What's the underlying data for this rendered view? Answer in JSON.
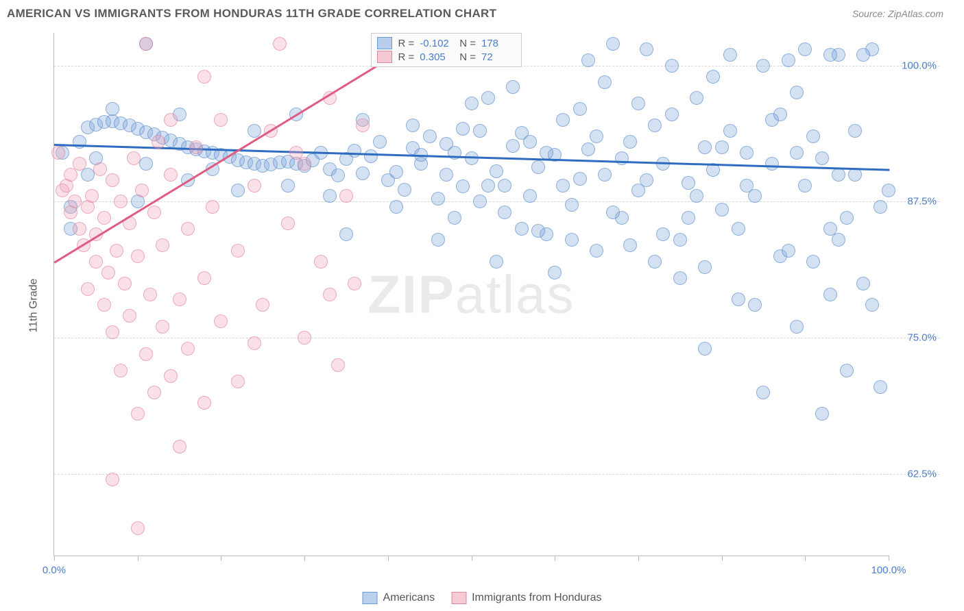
{
  "title": "AMERICAN VS IMMIGRANTS FROM HONDURAS 11TH GRADE CORRELATION CHART",
  "source": "Source: ZipAtlas.com",
  "ylabel": "11th Grade",
  "watermark_bold": "ZIP",
  "watermark_rest": "atlas",
  "chart": {
    "type": "scatter",
    "background_color": "#ffffff",
    "grid_color": "#d8d8d8",
    "xlim": [
      0,
      100
    ],
    "ylim": [
      55,
      103
    ],
    "xticks": [
      0,
      10,
      20,
      30,
      40,
      50,
      60,
      70,
      80,
      90,
      100
    ],
    "xtick_labels": {
      "0": "0.0%",
      "100": "100.0%"
    },
    "yticks": [
      62.5,
      75.0,
      87.5,
      100.0
    ],
    "ytick_labels": [
      "62.5%",
      "75.0%",
      "87.5%",
      "100.0%"
    ],
    "marker_radius": 10,
    "series": [
      {
        "name": "Americans",
        "color": "#8aabd9",
        "border": "#6a9ad4",
        "R": "-0.102",
        "N": "178",
        "trend": {
          "x1": 0,
          "y1": 92.8,
          "x2": 100,
          "y2": 90.5,
          "color": "#2e6cc2"
        },
        "points": [
          [
            1,
            92
          ],
          [
            2,
            85
          ],
          [
            3,
            93
          ],
          [
            4,
            94.3
          ],
          [
            5,
            94.6
          ],
          [
            6,
            94.8
          ],
          [
            7,
            94.9
          ],
          [
            8,
            94.7
          ],
          [
            9,
            94.5
          ],
          [
            10,
            94.2
          ],
          [
            11,
            93.9
          ],
          [
            12,
            93.7
          ],
          [
            13,
            93.4
          ],
          [
            14,
            93.1
          ],
          [
            15,
            92.8
          ],
          [
            16,
            92.5
          ],
          [
            17,
            92.3
          ],
          [
            18,
            92.1
          ],
          [
            19,
            92.0
          ],
          [
            20,
            91.8
          ],
          [
            21,
            91.6
          ],
          [
            22,
            91.3
          ],
          [
            23,
            91.1
          ],
          [
            24,
            91.0
          ],
          [
            25,
            90.8
          ],
          [
            26,
            90.9
          ],
          [
            27,
            91.1
          ],
          [
            28,
            91.2
          ],
          [
            29,
            91.0
          ],
          [
            30,
            90.8
          ],
          [
            31,
            91.3
          ],
          [
            32,
            92.0
          ],
          [
            33,
            90.5
          ],
          [
            34,
            89.9
          ],
          [
            35,
            91.4
          ],
          [
            36,
            92.2
          ],
          [
            37,
            90.1
          ],
          [
            38,
            91.7
          ],
          [
            39,
            93.0
          ],
          [
            40,
            89.5
          ],
          [
            41,
            90.2
          ],
          [
            42,
            88.6
          ],
          [
            43,
            92.4
          ],
          [
            44,
            91.0
          ],
          [
            45,
            93.5
          ],
          [
            46,
            87.8
          ],
          [
            47,
            90.0
          ],
          [
            48,
            92.0
          ],
          [
            49,
            88.9
          ],
          [
            50,
            91.5
          ],
          [
            51,
            94.0
          ],
          [
            52,
            89.0
          ],
          [
            53,
            90.3
          ],
          [
            54,
            86.5
          ],
          [
            55,
            92.6
          ],
          [
            56,
            93.8
          ],
          [
            57,
            88.0
          ],
          [
            58,
            90.7
          ],
          [
            59,
            84.5
          ],
          [
            60,
            91.8
          ],
          [
            61,
            95.0
          ],
          [
            62,
            87.2
          ],
          [
            63,
            89.6
          ],
          [
            64,
            92.3
          ],
          [
            65,
            83.0
          ],
          [
            66,
            90.0
          ],
          [
            67,
            102.0
          ],
          [
            68,
            86.0
          ],
          [
            69,
            93.0
          ],
          [
            70,
            88.5
          ],
          [
            71,
            101.5
          ],
          [
            72,
            82.0
          ],
          [
            73,
            91.0
          ],
          [
            74,
            95.5
          ],
          [
            75,
            84.0
          ],
          [
            76,
            89.2
          ],
          [
            77,
            97.0
          ],
          [
            78,
            81.5
          ],
          [
            79,
            90.4
          ],
          [
            80,
            86.8
          ],
          [
            81,
            101.0
          ],
          [
            82,
            78.5
          ],
          [
            83,
            92.0
          ],
          [
            84,
            88.0
          ],
          [
            85,
            70.0
          ],
          [
            86,
            95.0
          ],
          [
            87,
            82.5
          ],
          [
            88,
            100.5
          ],
          [
            89,
            76.0
          ],
          [
            90,
            89.0
          ],
          [
            91,
            93.5
          ],
          [
            92,
            68.0
          ],
          [
            93,
            85.0
          ],
          [
            94,
            101.0
          ],
          [
            95,
            72.0
          ],
          [
            96,
            90.0
          ],
          [
            97,
            80.0
          ],
          [
            98,
            101.5
          ],
          [
            99,
            87.0
          ],
          [
            100,
            88.5
          ],
          [
            43,
            94.5
          ],
          [
            48,
            86.0
          ],
          [
            52,
            97.0
          ],
          [
            57,
            93.0
          ],
          [
            62,
            84.0
          ],
          [
            66,
            98.5
          ],
          [
            71,
            89.5
          ],
          [
            74,
            100.0
          ],
          [
            78,
            92.5
          ],
          [
            82,
            85.0
          ],
          [
            86,
            91.0
          ],
          [
            89,
            97.5
          ],
          [
            93,
            79.0
          ],
          [
            96,
            94.0
          ],
          [
            44,
            91.8
          ],
          [
            49,
            94.2
          ],
          [
            54,
            89.0
          ],
          [
            58,
            84.8
          ],
          [
            63,
            96.0
          ],
          [
            68,
            91.5
          ],
          [
            73,
            84.5
          ],
          [
            77,
            88.0
          ],
          [
            81,
            94.0
          ],
          [
            85,
            100.0
          ],
          [
            88,
            83.0
          ],
          [
            92,
            91.5
          ],
          [
            95,
            86.0
          ],
          [
            98,
            78.0
          ],
          [
            47,
            92.8
          ],
          [
            53,
            82.0
          ],
          [
            33,
            88.0
          ],
          [
            37,
            95.0
          ],
          [
            28,
            89.0
          ],
          [
            24,
            94.0
          ],
          [
            19,
            90.5
          ],
          [
            15,
            95.5
          ],
          [
            11,
            91.0
          ],
          [
            7,
            96.0
          ],
          [
            4,
            90.0
          ],
          [
            2,
            87.0
          ],
          [
            55,
            98.0
          ],
          [
            60,
            81.0
          ],
          [
            65,
            93.5
          ],
          [
            70,
            96.5
          ],
          [
            75,
            80.5
          ],
          [
            80,
            92.5
          ],
          [
            84,
            78.0
          ],
          [
            87,
            95.5
          ],
          [
            91,
            82.0
          ],
          [
            94,
            90.0
          ],
          [
            97,
            101.0
          ],
          [
            99,
            70.5
          ],
          [
            46,
            84.0
          ],
          [
            51,
            87.5
          ],
          [
            56,
            85.0
          ],
          [
            61,
            89.0
          ],
          [
            64,
            100.5
          ],
          [
            69,
            83.5
          ],
          [
            72,
            94.5
          ],
          [
            76,
            86.0
          ],
          [
            79,
            99.0
          ],
          [
            83,
            89.0
          ],
          [
            78,
            74.0
          ],
          [
            67,
            86.5
          ],
          [
            59,
            92.0
          ],
          [
            50,
            96.5
          ],
          [
            41,
            87.0
          ],
          [
            35,
            84.5
          ],
          [
            29,
            95.5
          ],
          [
            22,
            88.5
          ],
          [
            16,
            89.5
          ],
          [
            10,
            87.5
          ],
          [
            5,
            91.5
          ],
          [
            89,
            92.0
          ],
          [
            94,
            84.0
          ],
          [
            11,
            102.0
          ],
          [
            90,
            101.5
          ],
          [
            93,
            101.0
          ]
        ]
      },
      {
        "name": "Immigrants from Honduras",
        "color": "#f0a8ba",
        "border": "#d88aa2",
        "R": "0.305",
        "N": "72",
        "trend": {
          "x1": 0,
          "y1": 82.0,
          "x2": 45,
          "y2": 103.0,
          "color": "#e05b84"
        },
        "points": [
          [
            0.5,
            92.0
          ],
          [
            1,
            88.5
          ],
          [
            1.5,
            89.0
          ],
          [
            2,
            86.5
          ],
          [
            2,
            90.0
          ],
          [
            2.5,
            87.5
          ],
          [
            3,
            85.0
          ],
          [
            3,
            91.0
          ],
          [
            3.5,
            83.5
          ],
          [
            4,
            87.0
          ],
          [
            4,
            79.5
          ],
          [
            4.5,
            88.0
          ],
          [
            5,
            84.5
          ],
          [
            5,
            82.0
          ],
          [
            5.5,
            90.5
          ],
          [
            6,
            78.0
          ],
          [
            6,
            86.0
          ],
          [
            6.5,
            81.0
          ],
          [
            7,
            89.5
          ],
          [
            7,
            75.5
          ],
          [
            7.5,
            83.0
          ],
          [
            8,
            87.5
          ],
          [
            8,
            72.0
          ],
          [
            8.5,
            80.0
          ],
          [
            9,
            85.5
          ],
          [
            9,
            77.0
          ],
          [
            9.5,
            91.5
          ],
          [
            10,
            68.0
          ],
          [
            10,
            82.5
          ],
          [
            10,
            57.5
          ],
          [
            10.5,
            88.5
          ],
          [
            11,
            73.5
          ],
          [
            11,
            102.0
          ],
          [
            11.5,
            79.0
          ],
          [
            12,
            86.5
          ],
          [
            12,
            70.0
          ],
          [
            12.5,
            93.0
          ],
          [
            13,
            76.0
          ],
          [
            13,
            83.5
          ],
          [
            14,
            71.5
          ],
          [
            14,
            90.0
          ],
          [
            15,
            78.5
          ],
          [
            15,
            65.0
          ],
          [
            16,
            85.0
          ],
          [
            16,
            74.0
          ],
          [
            17,
            92.5
          ],
          [
            18,
            80.5
          ],
          [
            18,
            69.0
          ],
          [
            19,
            87.0
          ],
          [
            20,
            76.5
          ],
          [
            20,
            95.0
          ],
          [
            22,
            83.0
          ],
          [
            22,
            71.0
          ],
          [
            24,
            89.0
          ],
          [
            25,
            78.0
          ],
          [
            26,
            94.0
          ],
          [
            27,
            102.0
          ],
          [
            28,
            85.5
          ],
          [
            30,
            75.0
          ],
          [
            30,
            91.0
          ],
          [
            32,
            82.0
          ],
          [
            33,
            97.0
          ],
          [
            34,
            72.5
          ],
          [
            35,
            88.0
          ],
          [
            36,
            80.0
          ],
          [
            37,
            94.5
          ],
          [
            7,
            62.0
          ],
          [
            14,
            95.0
          ],
          [
            18,
            99.0
          ],
          [
            24,
            74.5
          ],
          [
            29,
            92.0
          ],
          [
            33,
            79.0
          ]
        ]
      }
    ]
  },
  "legend": {
    "series1_label": "Americans",
    "series2_label": "Immigrants from Honduras"
  },
  "stats_box": {
    "r_label": "R =",
    "n_label": "N ="
  }
}
